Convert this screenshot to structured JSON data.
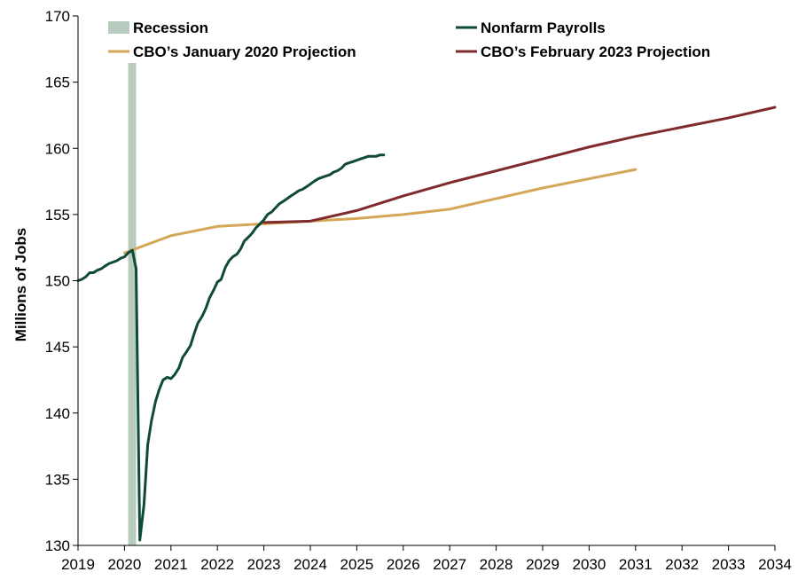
{
  "chart_data": {
    "type": "line",
    "title": "",
    "xlabel": "",
    "ylabel": "Millions of Jobs",
    "xlim": [
      2019,
      2034
    ],
    "ylim": [
      130,
      170
    ],
    "x_ticks": [
      "2019",
      "2020",
      "2021",
      "2022",
      "2023",
      "2024",
      "2025",
      "2026",
      "2027",
      "2028",
      "2029",
      "2030",
      "2031",
      "2032",
      "2033",
      "2034"
    ],
    "y_ticks": [
      "130",
      "135",
      "140",
      "145",
      "150",
      "155",
      "160",
      "165",
      "170"
    ],
    "grid": false,
    "legend_position": "top",
    "recession": {
      "name": "Recession",
      "start": 2020.08,
      "end": 2020.25,
      "color": "#b8cbbf"
    },
    "series": [
      {
        "name": "Nonfarm Payrolls",
        "color": "#0f4a37",
        "x": [
          2019.0,
          2019.08,
          2019.17,
          2019.25,
          2019.33,
          2019.42,
          2019.5,
          2019.58,
          2019.67,
          2019.75,
          2019.83,
          2019.92,
          2020.0,
          2020.08,
          2020.17,
          2020.25,
          2020.33,
          2020.42,
          2020.5,
          2020.58,
          2020.67,
          2020.75,
          2020.83,
          2020.92,
          2021.0,
          2021.08,
          2021.17,
          2021.25,
          2021.33,
          2021.42,
          2021.5,
          2021.58,
          2021.67,
          2021.75,
          2021.83,
          2021.92,
          2022.0,
          2022.08,
          2022.17,
          2022.25,
          2022.33,
          2022.42,
          2022.5,
          2022.58,
          2022.67,
          2022.75,
          2022.83,
          2022.92,
          2023.0,
          2023.08,
          2023.17,
          2023.25,
          2023.33,
          2023.42,
          2023.5,
          2023.58,
          2023.67,
          2023.75,
          2023.83,
          2023.92,
          2024.0,
          2024.08,
          2024.17,
          2024.25,
          2024.33,
          2024.42,
          2024.5,
          2024.58,
          2024.67,
          2024.75,
          2024.83,
          2024.92,
          2025.0,
          2025.08,
          2025.17,
          2025.25,
          2025.33,
          2025.42,
          2025.5,
          2025.58
        ],
        "values": [
          150.0,
          150.1,
          150.3,
          150.6,
          150.6,
          150.8,
          150.9,
          151.1,
          151.3,
          151.4,
          151.5,
          151.7,
          151.8,
          152.1,
          152.3,
          150.9,
          130.4,
          133.1,
          137.6,
          139.4,
          140.9,
          141.8,
          142.5,
          142.7,
          142.6,
          142.9,
          143.4,
          144.2,
          144.6,
          145.1,
          146.0,
          146.8,
          147.3,
          147.9,
          148.7,
          149.3,
          149.9,
          150.1,
          151.0,
          151.5,
          151.8,
          152.0,
          152.4,
          153.0,
          153.3,
          153.6,
          154.0,
          154.3,
          154.6,
          155.0,
          155.2,
          155.5,
          155.8,
          156.0,
          156.2,
          156.4,
          156.6,
          156.8,
          156.9,
          157.1,
          157.3,
          157.5,
          157.7,
          157.8,
          157.9,
          158.0,
          158.2,
          158.3,
          158.5,
          158.8,
          158.9,
          159.0,
          159.1,
          159.2,
          159.3,
          159.4,
          159.4,
          159.4,
          159.5,
          159.5
        ]
      },
      {
        "name": "CBO’s January 2020 Projection",
        "color": "#d4a657",
        "x": [
          2020.0,
          2021.0,
          2022.0,
          2023.0,
          2024.0,
          2025.0,
          2026.0,
          2027.0,
          2028.0,
          2029.0,
          2030.0,
          2031.0
        ],
        "values": [
          152.1,
          153.4,
          154.1,
          154.3,
          154.5,
          154.7,
          155.0,
          155.4,
          156.2,
          157.0,
          157.7,
          158.4
        ]
      },
      {
        "name": "CBO’s February 2023 Projection",
        "color": "#7f2a2c",
        "x": [
          2023.0,
          2024.0,
          2025.0,
          2026.0,
          2027.0,
          2028.0,
          2029.0,
          2030.0,
          2031.0,
          2032.0,
          2033.0,
          2034.0
        ],
        "values": [
          154.4,
          154.5,
          155.3,
          156.4,
          157.4,
          158.3,
          159.2,
          160.1,
          160.9,
          161.6,
          162.3,
          163.1
        ]
      }
    ]
  }
}
